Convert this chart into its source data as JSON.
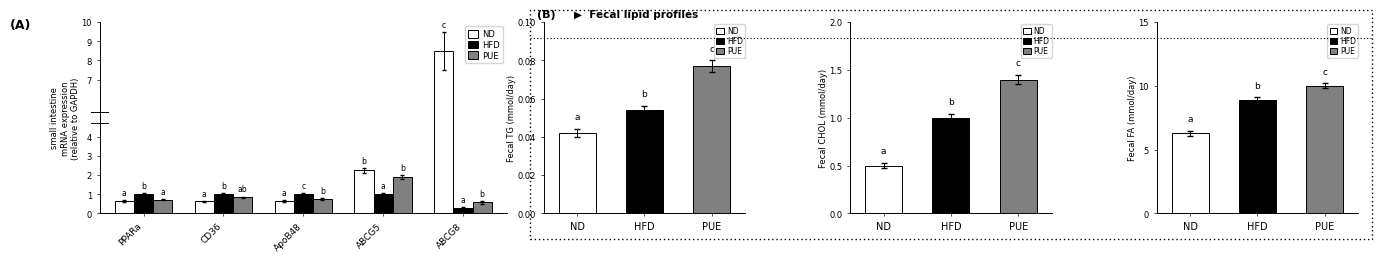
{
  "panel_A": {
    "genes": [
      "PPARa",
      "CD36",
      "ApoB48",
      "ABCG5",
      "ABCG8"
    ],
    "ND": [
      0.65,
      0.62,
      0.65,
      2.25,
      8.5
    ],
    "HFD": [
      1.0,
      1.0,
      1.0,
      1.0,
      0.28
    ],
    "PUE": [
      0.72,
      0.83,
      0.75,
      1.9,
      0.58
    ],
    "ND_err": [
      0.04,
      0.04,
      0.05,
      0.12,
      1.0
    ],
    "HFD_err": [
      0.04,
      0.04,
      0.04,
      0.05,
      0.03
    ],
    "PUE_err": [
      0.04,
      0.05,
      0.05,
      0.12,
      0.07
    ],
    "ND_letters": [
      "a",
      "a",
      "a",
      "b",
      "c"
    ],
    "HFD_letters": [
      "b",
      "b",
      "c",
      "a",
      "a"
    ],
    "PUE_letters": [
      "a",
      "ab",
      "b",
      "b",
      "b"
    ],
    "ylim": [
      0,
      10
    ],
    "yticks": [
      0,
      1,
      2,
      3,
      4,
      7,
      8,
      9,
      10
    ],
    "ytick_labels": [
      "0",
      "1",
      "2",
      "3",
      "4",
      "7",
      "8",
      "9",
      "10"
    ],
    "ylabel": "small intestine\nmRNA expression\n(relative to GAPDH)"
  },
  "panel_B_TG": {
    "ND": 0.042,
    "HFD": 0.054,
    "PUE": 0.077,
    "ND_err": 0.002,
    "HFD_err": 0.002,
    "PUE_err": 0.003,
    "letters": [
      "a",
      "b",
      "c"
    ],
    "ylabel": "Fecal TG (mmol/day)",
    "ylim": [
      0.0,
      0.1
    ],
    "yticks": [
      0.0,
      0.02,
      0.04,
      0.06,
      0.08,
      0.1
    ],
    "ytick_labels": [
      "0.00",
      "0.02",
      "0.04",
      "0.06",
      "0.08",
      "0.10"
    ]
  },
  "panel_B_CHOL": {
    "ND": 0.5,
    "HFD": 1.0,
    "PUE": 1.4,
    "ND_err": 0.03,
    "HFD_err": 0.04,
    "PUE_err": 0.05,
    "letters": [
      "a",
      "b",
      "c"
    ],
    "ylabel": "Fecal CHOL (mmol/day)",
    "ylim": [
      0.0,
      2.0
    ],
    "yticks": [
      0.0,
      0.5,
      1.0,
      1.5,
      2.0
    ],
    "ytick_labels": [
      "0.0",
      "0.5",
      "1.0",
      "1.5",
      "2.0"
    ]
  },
  "panel_B_FA": {
    "ND": 6.3,
    "HFD": 8.9,
    "PUE": 10.0,
    "ND_err": 0.2,
    "HFD_err": 0.2,
    "PUE_err": 0.2,
    "letters": [
      "a",
      "b",
      "c"
    ],
    "ylabel": "Fecal FA (mmol/day)",
    "ylim": [
      0,
      15
    ],
    "yticks": [
      0,
      5,
      10,
      15
    ],
    "ytick_labels": [
      "0",
      "5",
      "10",
      "15"
    ]
  },
  "colors": {
    "ND": "white",
    "HFD": "black",
    "PUE": "#808080"
  },
  "edgecolor": "black",
  "title_B": "▶  Fecal lipid profiles"
}
